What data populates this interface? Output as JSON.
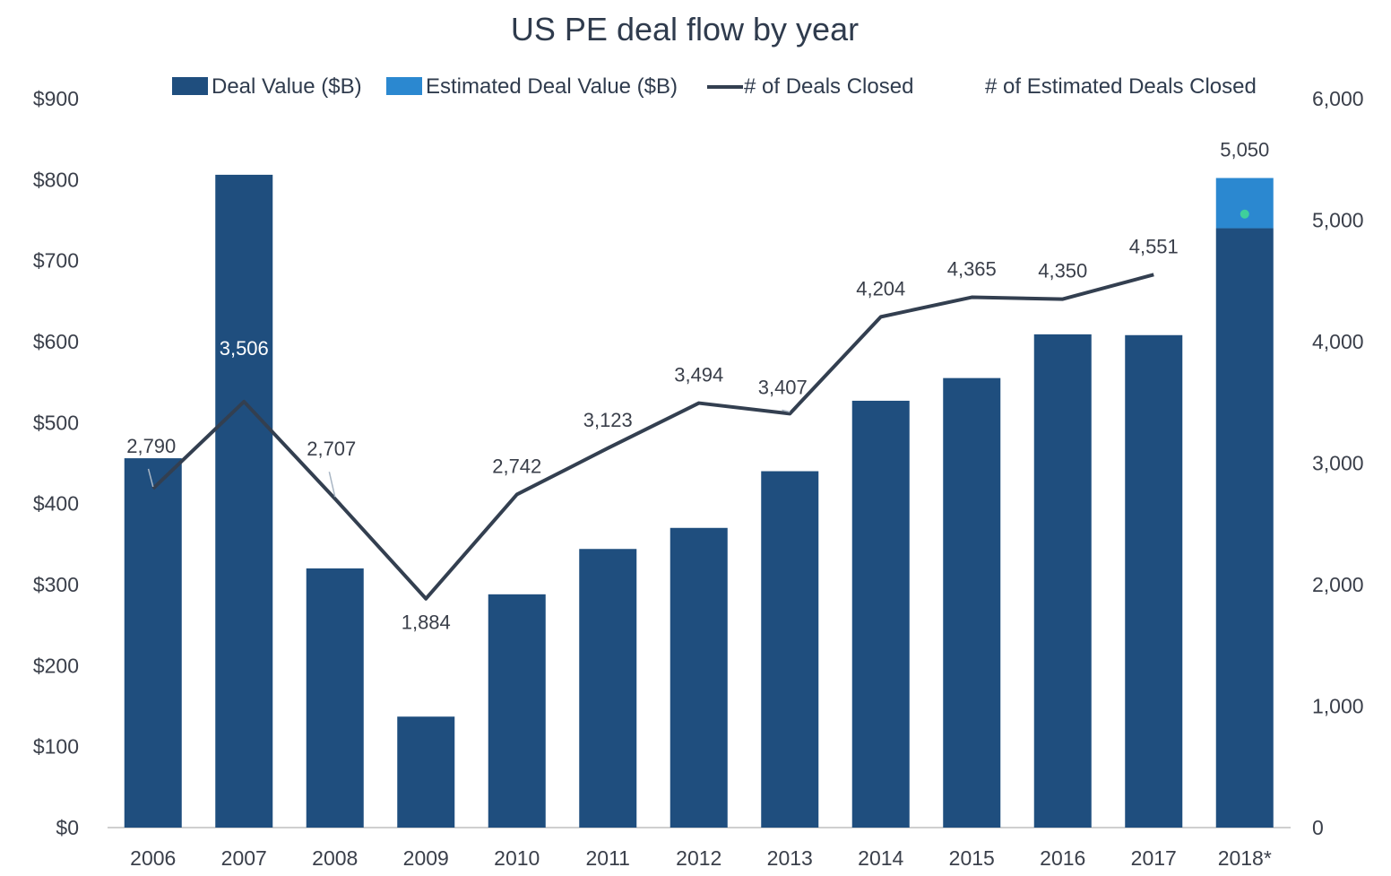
{
  "chart_data": {
    "type": "bar",
    "title": "US PE deal flow by year",
    "categories": [
      "2006",
      "2007",
      "2008",
      "2009",
      "2010",
      "2011",
      "2012",
      "2013",
      "2014",
      "2015",
      "2016",
      "2017",
      "2018*"
    ],
    "y_left": {
      "ylim": [
        0,
        900
      ],
      "ticks": [
        "$0",
        "$100",
        "$200",
        "$300",
        "$400",
        "$500",
        "$600",
        "$700",
        "$800",
        "$900"
      ]
    },
    "y_right": {
      "ylim": [
        0,
        6000
      ],
      "ticks": [
        "0",
        "1,000",
        "2,000",
        "3,000",
        "4,000",
        "5,000",
        "6,000"
      ]
    },
    "series": [
      {
        "name": "Deal Value ($B)",
        "kind": "bar",
        "axis": "left",
        "color": "#1f4e7e",
        "values": [
          456,
          806,
          320,
          137,
          288,
          344,
          370,
          440,
          527,
          555,
          609,
          608,
          740
        ]
      },
      {
        "name": "Estimated Deal Value ($B)",
        "kind": "bar-stacked",
        "axis": "left",
        "color": "#2b88d0",
        "values": [
          null,
          null,
          null,
          null,
          null,
          null,
          null,
          null,
          null,
          null,
          null,
          null,
          62
        ]
      },
      {
        "name": "# of Deals Closed",
        "kind": "line",
        "axis": "right",
        "color": "#333f50",
        "values": [
          2790,
          3506,
          2707,
          1884,
          2742,
          3123,
          3494,
          3407,
          4204,
          4365,
          4350,
          4551,
          null
        ],
        "labels": [
          "2,790",
          "3,506",
          "2,707",
          "1,884",
          "2,742",
          "3,123",
          "3,494",
          "3,407",
          "4,204",
          "4,365",
          "4,350",
          "4,551",
          null
        ]
      },
      {
        "name": "# of Estimated Deals Closed",
        "kind": "point",
        "axis": "right",
        "color": "#3fcf9c",
        "values": [
          null,
          null,
          null,
          null,
          null,
          null,
          null,
          null,
          null,
          null,
          null,
          null,
          5050
        ],
        "labels": [
          null,
          null,
          null,
          null,
          null,
          null,
          null,
          null,
          null,
          null,
          null,
          null,
          "5,050"
        ]
      }
    ],
    "legend_position": "top",
    "grid": false
  }
}
